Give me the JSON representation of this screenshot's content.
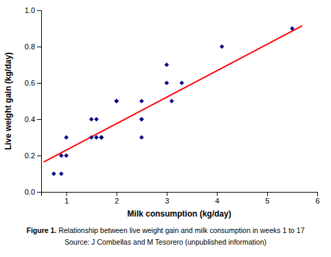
{
  "chart_data": {
    "type": "scatter",
    "xlabel": "Milk consumption (kg/day)",
    "ylabel": "Live weight gain (kg/day)",
    "annotations": [
      "Figure 1.",
      " Relationship between live weight gain and milk consumption in weeks 1 to 17",
      "Source: J Combellas and M Tesorero (unpublished information)"
    ],
    "xlim": [
      0.5,
      6.0
    ],
    "ylim": [
      0.0,
      1.0
    ],
    "xticks": [
      1,
      2,
      3,
      4,
      5,
      6
    ],
    "yticks": [
      {
        "value": 0.0,
        "label": "0.0"
      },
      0.2,
      0.4,
      0.6,
      0.8,
      {
        "value": 1.0,
        "label": "1.0"
      }
    ],
    "series": [
      {
        "type": "scatter",
        "marker": "diamond",
        "color": "#00008B",
        "x": [
          0.75,
          0.9,
          0.9,
          1.0,
          1.0,
          1.5,
          1.5,
          1.6,
          1.6,
          1.7,
          1.7,
          1.7,
          2.0,
          2.0,
          2.5,
          2.5,
          2.5,
          2.5,
          3.0,
          3.0,
          3.1,
          3.3,
          4.1,
          5.5
        ],
        "values": [
          0.1,
          0.1,
          0.2,
          0.2,
          0.3,
          0.3,
          0.4,
          0.3,
          0.4,
          0.3,
          0.3,
          0.3,
          0.5,
          0.5,
          0.4,
          0.5,
          0.4,
          0.3,
          0.6,
          0.7,
          0.5,
          0.6,
          0.8,
          0.9
        ]
      },
      {
        "type": "line",
        "color": "#FF0000",
        "x": [
          0.55,
          5.7
        ],
        "values": [
          0.165,
          0.915
        ]
      }
    ]
  }
}
